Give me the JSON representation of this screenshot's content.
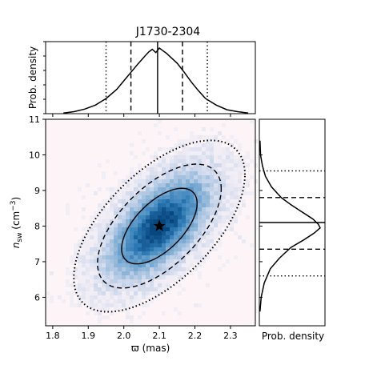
{
  "chart_data": [
    {
      "type": "line",
      "panel": "top-marginal",
      "title": "J1730-2304",
      "ylabel": "Prob. density",
      "xlim": [
        1.78,
        2.37
      ],
      "series": [
        {
          "x": [
            1.83,
            1.86,
            1.89,
            1.92,
            1.95,
            1.98,
            2.0,
            2.02,
            2.04,
            2.06,
            2.07,
            2.08,
            2.09,
            2.1,
            2.11,
            2.12,
            2.13,
            2.15,
            2.17,
            2.19,
            2.21,
            2.23,
            2.26,
            2.29,
            2.32,
            2.35
          ],
          "y": [
            0.01,
            0.03,
            0.07,
            0.13,
            0.23,
            0.37,
            0.5,
            0.63,
            0.76,
            0.88,
            0.94,
            0.98,
            0.93,
            1.0,
            0.96,
            0.92,
            0.87,
            0.77,
            0.63,
            0.48,
            0.35,
            0.23,
            0.13,
            0.06,
            0.03,
            0.01
          ]
        }
      ],
      "vlines": [
        {
          "x": 1.95,
          "style": "dotted"
        },
        {
          "x": 2.02,
          "style": "dashed"
        },
        {
          "x": 2.095,
          "style": "solid"
        },
        {
          "x": 2.165,
          "style": "dashed"
        },
        {
          "x": 2.235,
          "style": "dotted"
        }
      ]
    },
    {
      "type": "heatmap",
      "panel": "joint",
      "xlabel": "ϖ (mas)",
      "ylabel_main": "n",
      "ylabel_sub": "sw",
      "ylabel_unit": " (cm",
      "ylabel_unit_sup": "−3",
      "ylabel_close": ")",
      "xlim": [
        1.78,
        2.37
      ],
      "ylim": [
        5.2,
        11
      ],
      "xticks": [
        "1.8",
        "1.9",
        "2.0",
        "2.1",
        "2.2",
        "2.3"
      ],
      "xtick_values": [
        1.8,
        1.9,
        2.0,
        2.1,
        2.2,
        2.3
      ],
      "yticks": [
        "6",
        "7",
        "8",
        "9",
        "10",
        "11"
      ],
      "ytick_values": [
        6,
        7,
        8,
        9,
        10,
        11
      ],
      "center": {
        "x": 2.1,
        "y": 8.0
      },
      "sigma": {
        "x": 0.07,
        "y": 0.7
      },
      "correlation": 0.6,
      "contours_sigma": [
        1,
        2,
        3
      ],
      "marker": {
        "x": 2.1,
        "y": 8.0,
        "shape": "star"
      },
      "colormap": [
        "#fdf4f8",
        "#c6d4ea",
        "#7aaad2",
        "#2d7bb6",
        "#08467e"
      ]
    },
    {
      "type": "line",
      "panel": "right-marginal",
      "xlabel": "Prob. density",
      "ylim": [
        5.2,
        11
      ],
      "series": [
        {
          "y": [
            5.6,
            6.0,
            6.4,
            6.8,
            7.1,
            7.4,
            7.6,
            7.8,
            7.95,
            8.05,
            8.2,
            8.4,
            8.6,
            8.8,
            9.1,
            9.4,
            9.7,
            10.0,
            10.4
          ],
          "x": [
            0.01,
            0.03,
            0.08,
            0.18,
            0.33,
            0.52,
            0.72,
            0.9,
            1.0,
            0.97,
            0.88,
            0.7,
            0.52,
            0.36,
            0.2,
            0.1,
            0.05,
            0.02,
            0.01
          ]
        }
      ],
      "hlines": [
        {
          "y": 6.6,
          "style": "dotted"
        },
        {
          "y": 7.35,
          "style": "dashed"
        },
        {
          "y": 8.1,
          "style": "solid"
        },
        {
          "y": 8.8,
          "style": "dashed"
        },
        {
          "y": 9.55,
          "style": "dotted"
        }
      ]
    }
  ]
}
